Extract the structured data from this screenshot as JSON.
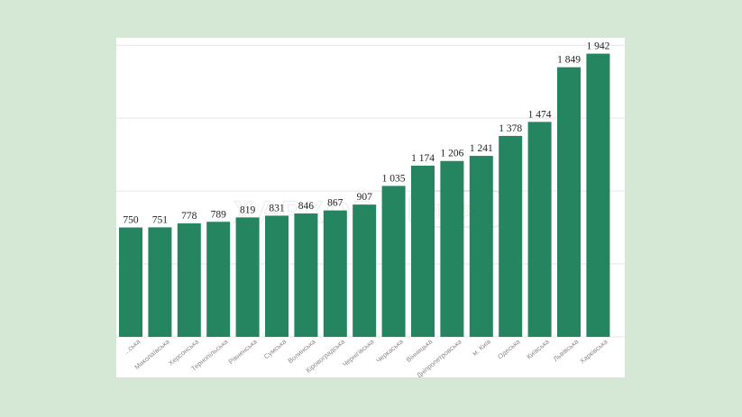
{
  "colors": {
    "background": "#d5e8d6",
    "panel": "#ffffff",
    "bar": "#248560",
    "grid": "#e6e6e6",
    "value_text": "#222222",
    "category_text": "#8a8a8a"
  },
  "watermark": {
    "text": "ХАРКОВ",
    "badge": "ИНФО"
  },
  "chart_data": {
    "type": "bar",
    "title": "",
    "xlabel": "",
    "ylabel": "",
    "grid": true,
    "ylim": [
      0,
      2000
    ],
    "categories": [
      "...ська",
      "Миколаївська",
      "Херсонська",
      "Тернопільська",
      "Рівненська",
      "Сумська",
      "Волинська",
      "Кіровоградська",
      "Чернігівська",
      "Черкаська",
      "Вінницька",
      "Дніпропетровська",
      "м. Київ",
      "Одеська",
      "Київська",
      "Львівська",
      "Харківська"
    ],
    "values": [
      750,
      751,
      778,
      789,
      819,
      831,
      846,
      867,
      907,
      1035,
      1174,
      1206,
      1241,
      1378,
      1474,
      1849,
      1942
    ],
    "value_labels": [
      "750",
      "751",
      "778",
      "789",
      "819",
      "831",
      "846",
      "867",
      "907",
      "1 035",
      "1 174",
      "1 206",
      "1 241",
      "1 378",
      "1 474",
      "1 849",
      "1 942"
    ]
  }
}
